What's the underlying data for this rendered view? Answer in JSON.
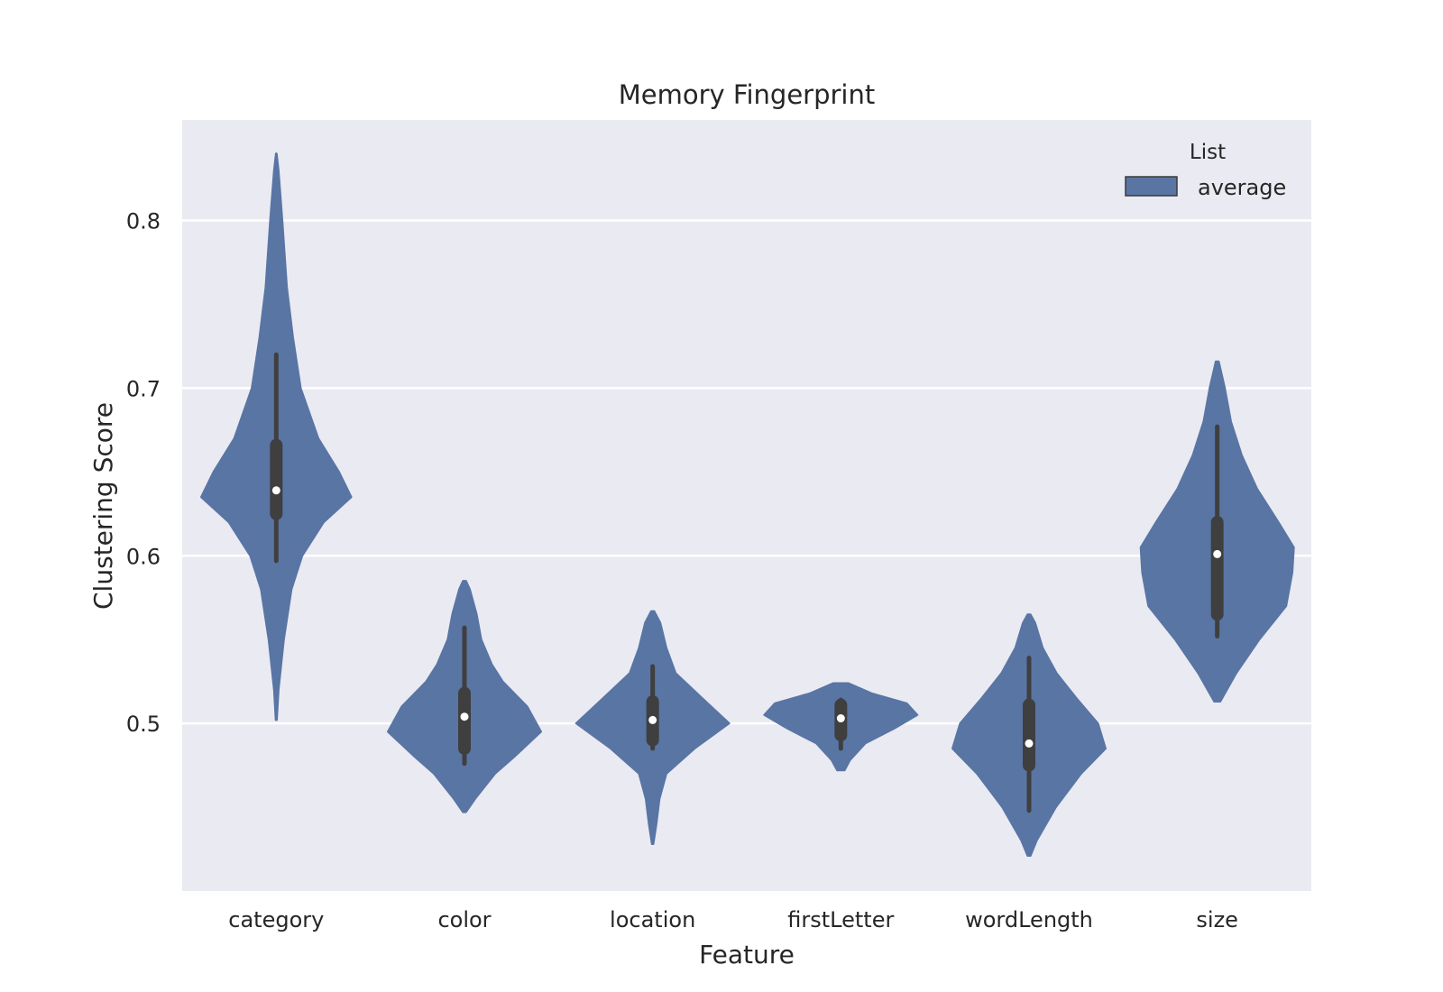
{
  "chart_data": {
    "type": "violin",
    "title": "Memory Fingerprint",
    "xlabel": "Feature",
    "ylabel": "Clustering Score",
    "ylim": [
      0.4,
      0.86
    ],
    "yticks": [
      0.5,
      0.6,
      0.7,
      0.8
    ],
    "categories": [
      "category",
      "color",
      "location",
      "firstLetter",
      "wordLength",
      "size"
    ],
    "grid": true,
    "background": "#eaeaf2",
    "violin_color": "#5975a4",
    "box_color": "#3f3f3f",
    "legend": {
      "title": "List",
      "entries": [
        "average"
      ],
      "placement": "top-right"
    },
    "series": [
      {
        "name": "average",
        "violins": [
          {
            "category": "category",
            "min": 0.502,
            "max": 0.84,
            "median": 0.639,
            "q1": 0.625,
            "q3": 0.666,
            "whisker_low": 0.597,
            "whisker_high": 0.72,
            "profile": [
              [
                0.502,
                0.008
              ],
              [
                0.52,
                0.03
              ],
              [
                0.55,
                0.1
              ],
              [
                0.58,
                0.2
              ],
              [
                0.6,
                0.34
              ],
              [
                0.62,
                0.62
              ],
              [
                0.635,
                0.98
              ],
              [
                0.65,
                0.82
              ],
              [
                0.67,
                0.55
              ],
              [
                0.7,
                0.32
              ],
              [
                0.73,
                0.22
              ],
              [
                0.76,
                0.14
              ],
              [
                0.8,
                0.08
              ],
              [
                0.83,
                0.03
              ],
              [
                0.84,
                0.005
              ]
            ]
          },
          {
            "category": "color",
            "min": 0.447,
            "max": 0.585,
            "median": 0.504,
            "q1": 0.485,
            "q3": 0.518,
            "whisker_low": 0.476,
            "whisker_high": 0.557,
            "profile": [
              [
                0.447,
                0.02
              ],
              [
                0.455,
                0.14
              ],
              [
                0.47,
                0.4
              ],
              [
                0.48,
                0.65
              ],
              [
                0.495,
                1.0
              ],
              [
                0.51,
                0.82
              ],
              [
                0.525,
                0.5
              ],
              [
                0.535,
                0.36
              ],
              [
                0.55,
                0.22
              ],
              [
                0.565,
                0.16
              ],
              [
                0.58,
                0.07
              ],
              [
                0.585,
                0.02
              ]
            ]
          },
          {
            "category": "location",
            "min": 0.428,
            "max": 0.567,
            "median": 0.502,
            "q1": 0.49,
            "q3": 0.513,
            "whisker_low": 0.485,
            "whisker_high": 0.534,
            "profile": [
              [
                0.428,
                0.01
              ],
              [
                0.44,
                0.05
              ],
              [
                0.455,
                0.09
              ],
              [
                0.47,
                0.18
              ],
              [
                0.485,
                0.55
              ],
              [
                0.5,
                1.0
              ],
              [
                0.515,
                0.65
              ],
              [
                0.53,
                0.3
              ],
              [
                0.545,
                0.18
              ],
              [
                0.56,
                0.1
              ],
              [
                0.567,
                0.02
              ]
            ]
          },
          {
            "category": "firstLetter",
            "min": 0.472,
            "max": 0.524,
            "median": 0.503,
            "q1": 0.493,
            "q3": 0.511,
            "whisker_low": 0.485,
            "whisker_high": 0.514,
            "profile": [
              [
                0.472,
                0.05
              ],
              [
                0.478,
                0.12
              ],
              [
                0.488,
                0.32
              ],
              [
                0.497,
                0.7
              ],
              [
                0.505,
                1.0
              ],
              [
                0.512,
                0.86
              ],
              [
                0.518,
                0.4
              ],
              [
                0.524,
                0.1
              ]
            ]
          },
          {
            "category": "wordLength",
            "min": 0.421,
            "max": 0.565,
            "median": 0.488,
            "q1": 0.475,
            "q3": 0.511,
            "whisker_low": 0.448,
            "whisker_high": 0.539,
            "profile": [
              [
                0.421,
                0.02
              ],
              [
                0.43,
                0.1
              ],
              [
                0.45,
                0.35
              ],
              [
                0.47,
                0.68
              ],
              [
                0.485,
                1.0
              ],
              [
                0.5,
                0.9
              ],
              [
                0.515,
                0.62
              ],
              [
                0.53,
                0.36
              ],
              [
                0.545,
                0.18
              ],
              [
                0.56,
                0.08
              ],
              [
                0.565,
                0.02
              ]
            ]
          },
          {
            "category": "size",
            "min": 0.513,
            "max": 0.716,
            "median": 0.601,
            "q1": 0.565,
            "q3": 0.62,
            "whisker_low": 0.552,
            "whisker_high": 0.677,
            "profile": [
              [
                0.513,
                0.04
              ],
              [
                0.53,
                0.25
              ],
              [
                0.55,
                0.55
              ],
              [
                0.57,
                0.9
              ],
              [
                0.59,
                0.98
              ],
              [
                0.605,
                1.0
              ],
              [
                0.62,
                0.8
              ],
              [
                0.64,
                0.52
              ],
              [
                0.66,
                0.32
              ],
              [
                0.68,
                0.18
              ],
              [
                0.7,
                0.1
              ],
              [
                0.716,
                0.02
              ]
            ]
          }
        ]
      }
    ]
  }
}
